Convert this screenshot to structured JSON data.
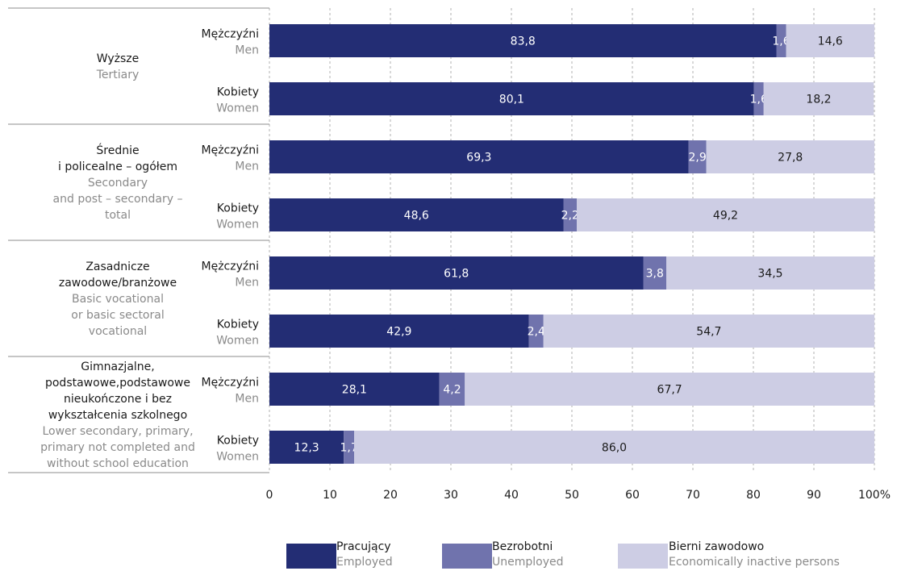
{
  "chart_data": {
    "type": "bar",
    "orientation": "horizontal",
    "stacked": true,
    "colors": {
      "employed": "#232d74",
      "unemployed": "#7073ad",
      "inactive": "#cdcde4",
      "grid": "#b0b0b0"
    },
    "xlim": [
      0,
      100
    ],
    "ticks": [
      "0",
      "10",
      "20",
      "30",
      "40",
      "50",
      "60",
      "70",
      "80",
      "90",
      "100%"
    ],
    "tick_values": [
      0,
      10,
      20,
      30,
      40,
      50,
      60,
      70,
      80,
      90,
      100
    ],
    "legend_position": "bottom",
    "legend": [
      {
        "key": "employed",
        "pl": "Pracujący",
        "en": "Employed"
      },
      {
        "key": "unemployed",
        "pl": "Bezrobotni",
        "en": "Unemployed"
      },
      {
        "key": "inactive",
        "pl": "Bierni zawodowo",
        "en": "Economically inactive persons"
      }
    ],
    "groups": [
      {
        "label_pl": [
          "Wyższe"
        ],
        "label_en": [
          "Tertiary"
        ],
        "rows": [
          {
            "pl": "Mężczyźni",
            "en": "Men",
            "values": [
              83.8,
              1.6,
              14.6
            ],
            "labels": [
              "83,8",
              "1,6",
              "14,6"
            ]
          },
          {
            "pl": "Kobiety",
            "en": "Women",
            "values": [
              80.1,
              1.6,
              18.2
            ],
            "labels": [
              "80,1",
              "1,6",
              "18,2"
            ]
          }
        ]
      },
      {
        "label_pl": [
          "Średnie",
          "i policealne – ogółem"
        ],
        "label_en": [
          "Secondary",
          "and post – secondary –",
          "total"
        ],
        "rows": [
          {
            "pl": "Mężczyźni",
            "en": "Men",
            "values": [
              69.3,
              2.9,
              27.8
            ],
            "labels": [
              "69,3",
              "2,9",
              "27,8"
            ]
          },
          {
            "pl": "Kobiety",
            "en": "Women",
            "values": [
              48.6,
              2.2,
              49.2
            ],
            "labels": [
              "48,6",
              "2,2",
              "49,2"
            ]
          }
        ]
      },
      {
        "label_pl": [
          "Zasadnicze",
          "zawodowe/branżowe"
        ],
        "label_en": [
          "Basic vocational",
          "or basic sectoral",
          "vocational"
        ],
        "rows": [
          {
            "pl": "Mężczyźni",
            "en": "Men",
            "values": [
              61.8,
              3.8,
              34.5
            ],
            "labels": [
              "61,8",
              "3,8",
              "34,5"
            ]
          },
          {
            "pl": "Kobiety",
            "en": "Women",
            "values": [
              42.9,
              2.4,
              54.7
            ],
            "labels": [
              "42,9",
              "2,4",
              "54,7"
            ]
          }
        ]
      },
      {
        "label_pl": [
          "Gimnazjalne,",
          "podstawowe,podstawowe",
          "nieukończone i bez",
          "wykształcenia szkolnego"
        ],
        "label_en": [
          "Lower secondary, primary,",
          "primary not completed and",
          "without school education"
        ],
        "rows": [
          {
            "pl": "Mężczyźni",
            "en": "Men",
            "values": [
              28.1,
              4.2,
              67.7
            ],
            "labels": [
              "28,1",
              "4,2",
              "67,7"
            ]
          },
          {
            "pl": "Kobiety",
            "en": "Women",
            "values": [
              12.3,
              1.7,
              86.0
            ],
            "labels": [
              "12,3",
              "1,7",
              "86,0"
            ]
          }
        ]
      }
    ]
  }
}
